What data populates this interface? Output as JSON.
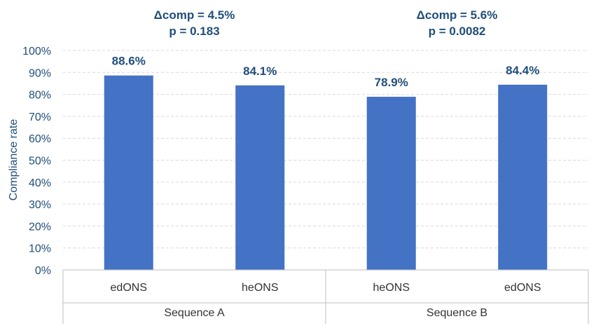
{
  "chart_data": {
    "type": "bar",
    "title": "",
    "xlabel": "",
    "ylabel": "Compliance rate",
    "ylim": [
      0,
      100
    ],
    "y_ticks": [
      "0%",
      "10%",
      "20%",
      "30%",
      "40%",
      "50%",
      "60%",
      "70%",
      "80%",
      "90%",
      "100%"
    ],
    "grid": true,
    "bar_color": "#4472c4",
    "categories": [
      "edONS",
      "heONS",
      "heONS",
      "edONS"
    ],
    "values": [
      88.6,
      84.1,
      78.9,
      84.4
    ],
    "data_labels": [
      "88.6%",
      "84.1%",
      "78.9%",
      "84.4%"
    ],
    "groups": [
      {
        "name": "Sequence A",
        "annotation_line1": "Δcomp = 4.5%",
        "annotation_line2": "p = 0.183"
      },
      {
        "name": "Sequence B",
        "annotation_line1": "Δcomp = 5.6%",
        "annotation_line2": "p = 0.0082"
      }
    ]
  }
}
